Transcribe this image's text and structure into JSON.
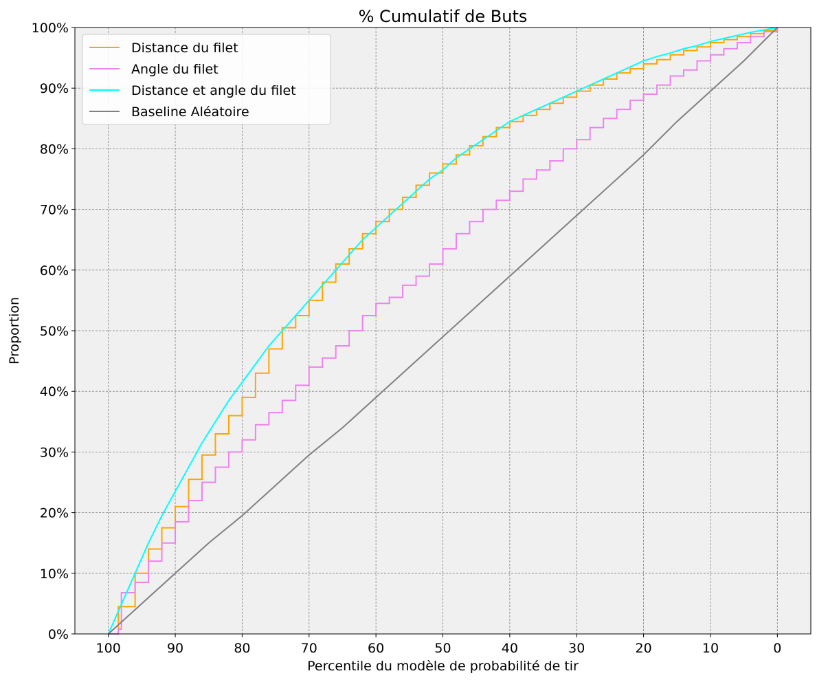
{
  "chart_data": {
    "type": "line",
    "title": "% Cumulatif de Buts",
    "xlabel": "Percentile du modèle de probabilité de tir",
    "ylabel": "Proportion",
    "xlim": [
      105,
      -5
    ],
    "ylim": [
      0,
      1
    ],
    "x_ticks": [
      100,
      90,
      80,
      70,
      60,
      50,
      40,
      30,
      20,
      10,
      0
    ],
    "x_tick_labels": [
      "100",
      "90",
      "80",
      "70",
      "60",
      "50",
      "40",
      "30",
      "20",
      "10",
      "0"
    ],
    "y_ticks": [
      0,
      0.1,
      0.2,
      0.3,
      0.4,
      0.5,
      0.6,
      0.7,
      0.8,
      0.9,
      1.0
    ],
    "y_tick_labels": [
      "0%",
      "10%",
      "20%",
      "30%",
      "40%",
      "50%",
      "60%",
      "70%",
      "80%",
      "90%",
      "100%"
    ],
    "grid": true,
    "background": "#f0f0f0",
    "legend_position": "upper-left",
    "series": [
      {
        "name": "Distance du filet",
        "color": "#ffa500",
        "step": true,
        "x": [
          100,
          98.5,
          96,
          94,
          92,
          90,
          88,
          86,
          84,
          82,
          80,
          78,
          76,
          74,
          72,
          70,
          68,
          66,
          64,
          62,
          60,
          58,
          56,
          54,
          52,
          50,
          48,
          46,
          44,
          42,
          40,
          38,
          36,
          34,
          32,
          30,
          28,
          26,
          24,
          22,
          20,
          18,
          16,
          14,
          12,
          10,
          8,
          6,
          4,
          2,
          0
        ],
        "y": [
          0,
          0.045,
          0.1,
          0.14,
          0.175,
          0.21,
          0.255,
          0.295,
          0.33,
          0.36,
          0.39,
          0.43,
          0.47,
          0.505,
          0.525,
          0.55,
          0.58,
          0.61,
          0.635,
          0.66,
          0.68,
          0.7,
          0.72,
          0.74,
          0.76,
          0.775,
          0.79,
          0.805,
          0.82,
          0.835,
          0.845,
          0.855,
          0.865,
          0.875,
          0.885,
          0.895,
          0.905,
          0.915,
          0.925,
          0.932,
          0.94,
          0.947,
          0.955,
          0.962,
          0.968,
          0.975,
          0.98,
          0.985,
          0.99,
          0.995,
          1.0
        ]
      },
      {
        "name": "Angle du filet",
        "color": "#ee82ee",
        "step": true,
        "x": [
          100,
          98.5,
          98.05,
          96,
          94,
          92,
          90,
          88,
          86,
          84,
          82,
          80,
          78,
          76,
          74,
          72,
          70,
          68,
          66,
          64,
          62,
          60,
          58,
          56,
          54,
          52,
          50,
          48,
          46,
          44,
          42,
          40,
          38,
          36,
          34,
          32,
          30,
          28,
          26,
          24,
          22,
          20,
          18,
          16,
          14,
          12,
          10,
          8,
          6,
          4,
          2,
          0
        ],
        "y": [
          0,
          0.008,
          0.068,
          0.085,
          0.12,
          0.15,
          0.185,
          0.22,
          0.25,
          0.275,
          0.3,
          0.32,
          0.345,
          0.365,
          0.385,
          0.41,
          0.44,
          0.455,
          0.475,
          0.5,
          0.525,
          0.545,
          0.555,
          0.575,
          0.59,
          0.61,
          0.635,
          0.66,
          0.68,
          0.7,
          0.715,
          0.73,
          0.75,
          0.765,
          0.78,
          0.8,
          0.815,
          0.835,
          0.85,
          0.865,
          0.88,
          0.89,
          0.905,
          0.92,
          0.93,
          0.945,
          0.955,
          0.965,
          0.975,
          0.985,
          0.993,
          1.0
        ]
      },
      {
        "name": "Distance et angle du filet",
        "color": "#00ffff",
        "step": false,
        "x": [
          100,
          98,
          96,
          94,
          92,
          90,
          88,
          86,
          84,
          82,
          80,
          78,
          76,
          74,
          72,
          70,
          68,
          66,
          64,
          62,
          60,
          58,
          56,
          54,
          52,
          50,
          48,
          46,
          44,
          42,
          40,
          38,
          36,
          34,
          32,
          30,
          28,
          26,
          24,
          22,
          20,
          18,
          16,
          14,
          12,
          10,
          8,
          6,
          4,
          2,
          0
        ],
        "y": [
          0,
          0.05,
          0.1,
          0.15,
          0.195,
          0.235,
          0.275,
          0.315,
          0.35,
          0.385,
          0.415,
          0.445,
          0.475,
          0.5,
          0.525,
          0.55,
          0.575,
          0.6,
          0.625,
          0.65,
          0.67,
          0.69,
          0.71,
          0.73,
          0.75,
          0.765,
          0.785,
          0.8,
          0.815,
          0.83,
          0.845,
          0.855,
          0.865,
          0.875,
          0.885,
          0.895,
          0.905,
          0.915,
          0.925,
          0.935,
          0.945,
          0.952,
          0.958,
          0.965,
          0.97,
          0.977,
          0.982,
          0.987,
          0.992,
          0.996,
          1.0
        ]
      },
      {
        "name": "Baseline Aléatoire",
        "color": "#808080",
        "step": false,
        "x": [
          100,
          95,
          90,
          85,
          80,
          75,
          70,
          65,
          60,
          55,
          50,
          45,
          40,
          35,
          30,
          25,
          20,
          15,
          10,
          5,
          0
        ],
        "y": [
          0,
          0.05,
          0.1,
          0.15,
          0.195,
          0.245,
          0.295,
          0.34,
          0.39,
          0.44,
          0.49,
          0.54,
          0.59,
          0.64,
          0.69,
          0.74,
          0.79,
          0.845,
          0.895,
          0.945,
          1.0
        ]
      }
    ]
  }
}
